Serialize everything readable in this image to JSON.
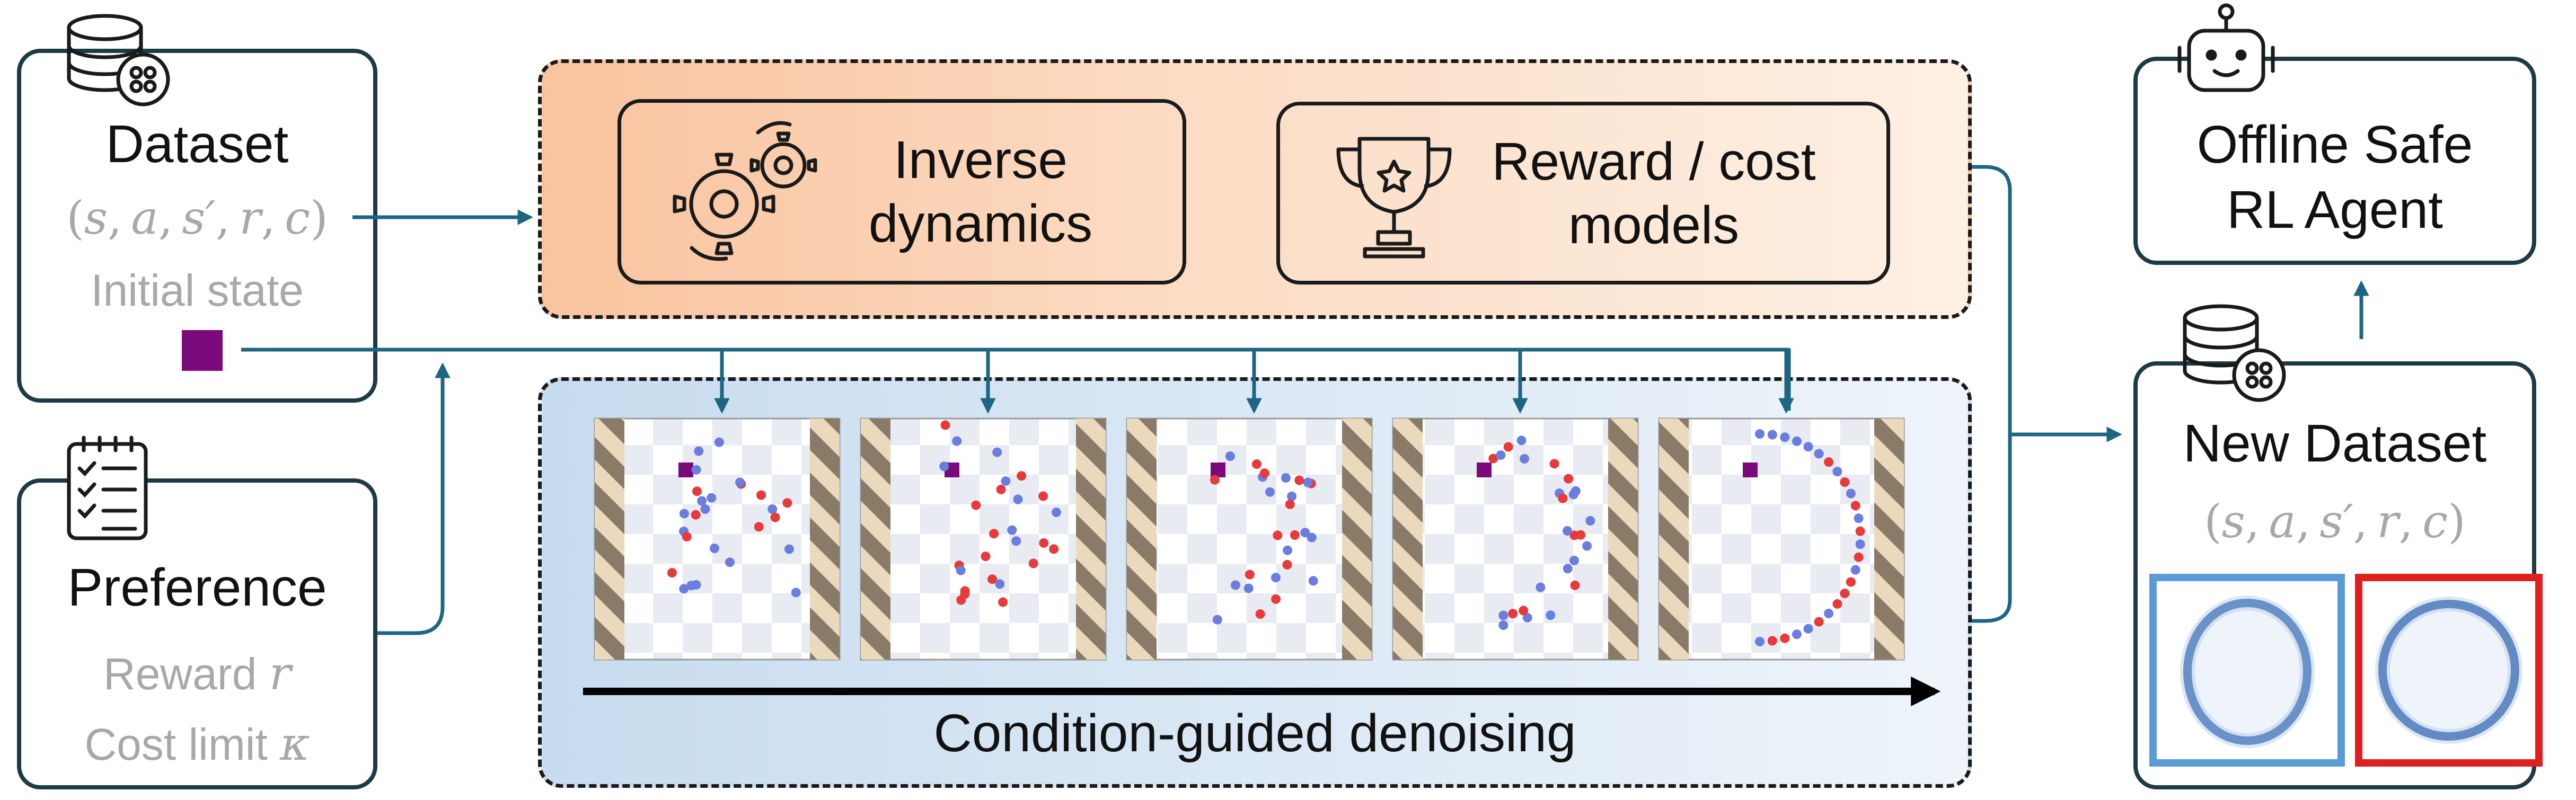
{
  "dataset": {
    "title": "Dataset",
    "tuple": [
      "s",
      "a",
      "s′",
      "r",
      "c"
    ],
    "initial_state_label": "Initial state"
  },
  "preference": {
    "title": "Preference",
    "reward_label": "Reward",
    "reward_symbol": "r",
    "cost_label": "Cost limit",
    "cost_symbol": "κ"
  },
  "models": {
    "inverse_dynamics": [
      "Inverse",
      "dynamics"
    ],
    "reward_cost": [
      "Reward / cost",
      "models"
    ]
  },
  "denoising": {
    "label": "Condition-guided denoising",
    "step_count": 5
  },
  "agent": {
    "title": [
      "Offline Safe",
      "RL Agent"
    ]
  },
  "new_dataset": {
    "title": "New Dataset",
    "tuple": [
      "s",
      "a",
      "s′",
      "r",
      "c"
    ]
  },
  "colors": {
    "stroke": "#1e3a44",
    "arrow": "#1c6683",
    "state_marker": "#7a0a7a",
    "red_point": "#e83a3a",
    "blue_point": "#6a7de0",
    "blue_frame": "#5b9bd5",
    "red_frame": "#e02020",
    "models_panel_start": "#f9c39e",
    "models_panel_end": "#fdf0e4",
    "denoise_panel_start": "#c7dcef",
    "denoise_panel_end": "#eef4fa"
  },
  "icons": [
    "database-icon",
    "clipboard-checklist-icon",
    "gears-icon",
    "trophy-icon",
    "robot-icon",
    "database-icon"
  ]
}
